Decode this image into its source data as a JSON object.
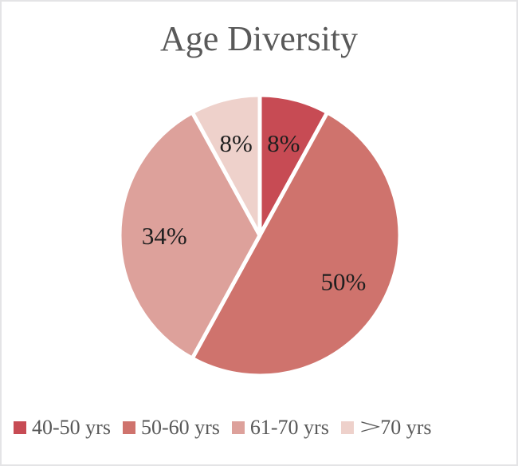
{
  "chart_data": {
    "type": "pie",
    "title": "Age Diversity",
    "categories": [
      "40-50 yrs",
      "50-60 yrs",
      "61-70 yrs",
      ">70 yrs"
    ],
    "values": [
      8,
      50,
      34,
      8
    ],
    "data_labels": [
      "8%",
      "50%",
      "34%",
      "8%"
    ],
    "colors": [
      "#C74B54",
      "#CF736D",
      "#DDA19B",
      "#EED1CB"
    ],
    "slice_border_color": "#FFFFFF",
    "label_color": "#1F1F1F",
    "title_color": "#595959",
    "legend_text_color": "#595959",
    "legend_position": "bottom",
    "start_angle_deg": 0,
    "direction": "clockwise"
  }
}
